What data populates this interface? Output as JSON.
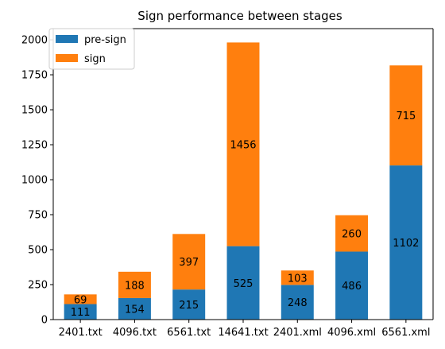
{
  "chart_data": {
    "type": "bar",
    "stacked": true,
    "title": "Sign performance between stages",
    "xlabel": "",
    "ylabel": "",
    "categories": [
      "2401.txt",
      "4096.txt",
      "6561.txt",
      "14641.txt",
      "2401.xml",
      "4096.xml",
      "6561.xml"
    ],
    "series": [
      {
        "name": "pre-sign",
        "color": "#1f77b4",
        "values": [
          111,
          154,
          215,
          525,
          248,
          486,
          1102
        ]
      },
      {
        "name": "sign",
        "color": "#ff7f0e",
        "values": [
          69,
          188,
          397,
          1456,
          103,
          260,
          715
        ]
      }
    ],
    "ylim": [
      0,
      2080
    ],
    "yticks": [
      0,
      250,
      500,
      750,
      1000,
      1250,
      1500,
      1750,
      2000
    ],
    "grid": false,
    "legend": "top-left",
    "data_labels": true
  }
}
